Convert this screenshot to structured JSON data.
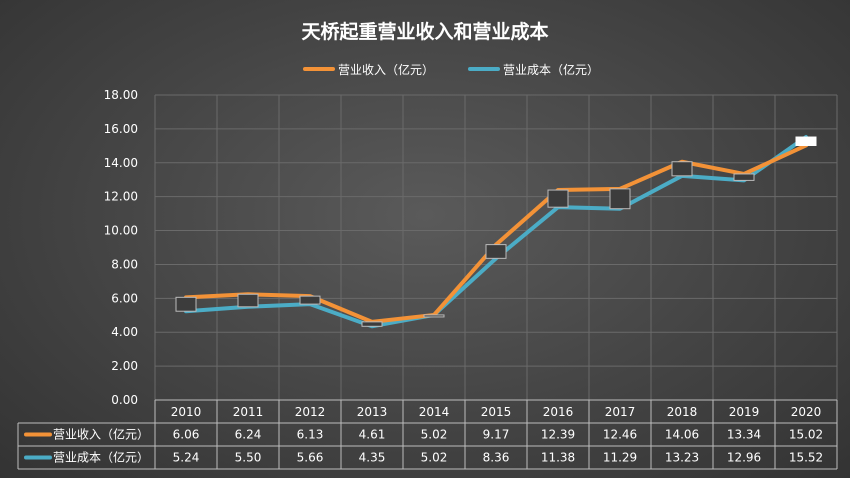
{
  "chart_data": {
    "type": "line",
    "title": "天桥起重营业收入和营业成本",
    "categories": [
      "2010",
      "2011",
      "2012",
      "2013",
      "2014",
      "2015",
      "2016",
      "2017",
      "2018",
      "2019",
      "2020"
    ],
    "series": [
      {
        "name": "营业收入（亿元）",
        "color": "#f39237",
        "values": [
          6.06,
          6.24,
          6.13,
          4.61,
          5.02,
          9.17,
          12.39,
          12.46,
          14.06,
          13.34,
          15.02
        ]
      },
      {
        "name": "营业成本（亿元）",
        "color": "#4bacc6",
        "values": [
          5.24,
          5.5,
          5.66,
          4.35,
          5.02,
          8.36,
          11.38,
          11.29,
          13.23,
          12.96,
          15.52
        ]
      }
    ],
    "ylim": [
      0,
      18
    ],
    "yticks": [
      "0.00",
      "2.00",
      "4.00",
      "6.00",
      "8.00",
      "10.00",
      "12.00",
      "14.00",
      "16.00",
      "18.00"
    ],
    "table_values": [
      [
        "6.06",
        "6.24",
        "6.13",
        "4.61",
        "5.02",
        "9.17",
        "12.39",
        "12.46",
        "14.06",
        "13.34",
        "15.02"
      ],
      [
        "5.24",
        "5.50",
        "5.66",
        "4.35",
        "5.02",
        "8.36",
        "11.38",
        "11.29",
        "13.23",
        "12.96",
        "15.52"
      ]
    ],
    "grid": true,
    "legend": "top-center",
    "data_table": true
  }
}
